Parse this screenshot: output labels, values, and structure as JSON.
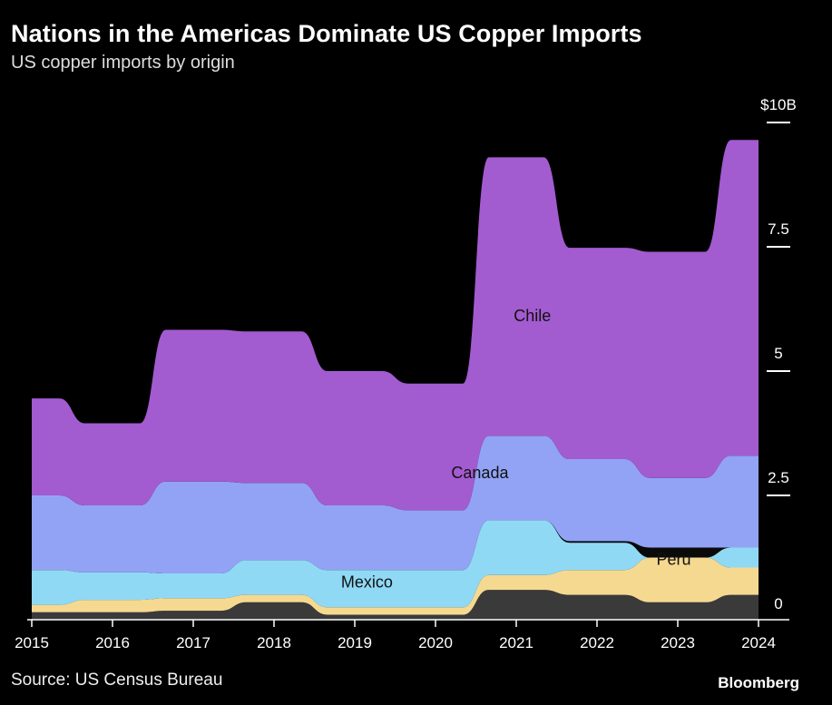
{
  "header": {
    "title": "Nations in the Americas Dominate US Copper Imports",
    "subtitle": "US copper imports by origin"
  },
  "footer": {
    "source": "Source: US Census Bureau",
    "brand": "Bloomberg"
  },
  "chart_data": {
    "type": "area",
    "stacked": true,
    "x_labels": [
      "2015",
      "2016",
      "2017",
      "2018",
      "2019",
      "2020",
      "2021",
      "2022",
      "2023",
      "2024"
    ],
    "x": [
      2015,
      2016,
      2017,
      2018,
      2019,
      2020,
      2021,
      2022,
      2023,
      2024
    ],
    "xlim": [
      2015,
      2024
    ],
    "ylim": [
      0,
      10
    ],
    "y_ticks": [
      {
        "value": 10,
        "label": "$10B"
      },
      {
        "value": 7.5,
        "label": "7.5"
      },
      {
        "value": 5,
        "label": "5"
      },
      {
        "value": 2.5,
        "label": "2.5"
      },
      {
        "value": 0,
        "label": "0"
      }
    ],
    "y_ticks_position": "right",
    "grid": false,
    "legend": "inline labels",
    "series": [
      {
        "key": "other",
        "color": "#3a3a3a",
        "values": [
          0.15,
          0.15,
          0.18,
          0.35,
          0.1,
          0.1,
          0.6,
          0.5,
          0.35,
          0.5
        ]
      },
      {
        "key": "peru",
        "name": "Peru",
        "color": "#f5d990",
        "values": [
          0.15,
          0.25,
          0.25,
          0.15,
          0.15,
          0.15,
          0.3,
          0.5,
          0.9,
          0.55
        ]
      },
      {
        "key": "mexico",
        "name": "Mexico",
        "color": "#8fd9f5",
        "values": [
          0.7,
          0.55,
          0.5,
          0.7,
          0.75,
          0.75,
          1.1,
          0.55,
          0.0,
          0.4
        ]
      },
      {
        "key": "gap",
        "color": "#0a0a0a",
        "values": [
          0,
          0,
          0,
          0,
          0,
          0,
          0,
          0.03,
          0.2,
          0
        ]
      },
      {
        "key": "canada",
        "name": "Canada",
        "color": "#92a3f5",
        "values": [
          1.5,
          1.35,
          1.85,
          1.55,
          1.3,
          1.2,
          1.7,
          1.65,
          1.4,
          1.85
        ]
      },
      {
        "key": "chile",
        "name": "Chile",
        "color": "#a35bd0",
        "values": [
          1.95,
          1.65,
          3.05,
          3.05,
          2.7,
          2.55,
          5.6,
          4.25,
          4.55,
          6.35
        ]
      }
    ]
  }
}
